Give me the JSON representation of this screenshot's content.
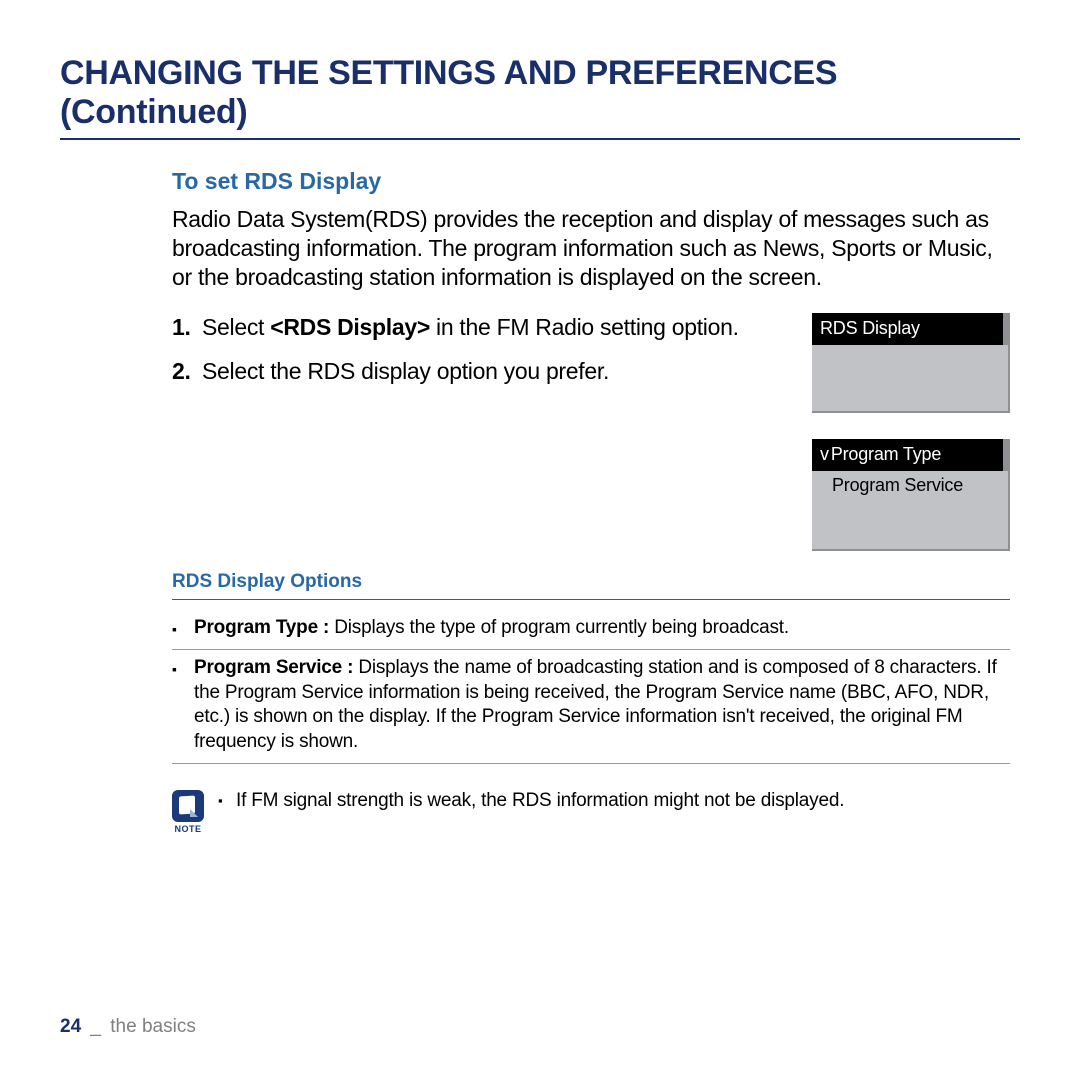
{
  "colors": {
    "heading": "#1a2f6a",
    "subheading": "#2968a6",
    "body": "#000000",
    "footer_muted": "#808080",
    "screen_bg": "#c0c2c5",
    "screen_header_bg": "#000000",
    "screen_header_text": "#ffffff",
    "note_icon_bg": "#1a3a7a"
  },
  "page_title": "CHANGING THE SETTINGS AND PREFERENCES (Continued)",
  "section_heading": "To set RDS Display",
  "intro": "Radio Data System(RDS) provides the reception and display of messages such as broadcasting information. The program information such as News, Sports or Music, or the broadcasting station information is displayed on the screen.",
  "steps": {
    "s1": {
      "num": "1.",
      "pre": "Select ",
      "bold": "<RDS Display>",
      "post": " in the FM Radio setting option."
    },
    "s2": {
      "num": "2.",
      "text": "Select the RDS display option you prefer."
    }
  },
  "screen1": {
    "header": "RDS Display"
  },
  "screen2": {
    "selected_marker": "v",
    "selected": "Program Type",
    "item2": "Program Service"
  },
  "options_heading": "RDS Display Options",
  "options": {
    "o1": {
      "label": "Program Type :",
      "desc": " Displays the type of program currently being broadcast."
    },
    "o2": {
      "label": "Program Service :",
      "desc": " Displays the name of broadcasting station and is composed of 8 characters. If the Program Service information is being received, the Program Service name (BBC, AFO, NDR, etc.) is shown on the display. If the Program Service information isn't received, the original FM frequency is shown."
    }
  },
  "note": {
    "label": "NOTE",
    "text": "If FM signal strength is weak, the RDS information might not be displayed."
  },
  "footer": {
    "page": "24",
    "sep": "_",
    "section": "the basics"
  }
}
